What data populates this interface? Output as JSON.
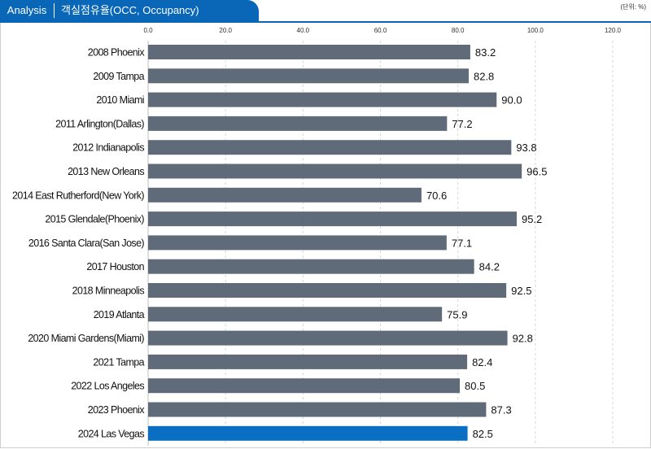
{
  "header": {
    "tag": "Analysis",
    "title": "객실점유율(OCC, Occupancy)",
    "unit": "(단위: %)"
  },
  "colors": {
    "accent": "#0a67b8",
    "bar": "#5f6b78",
    "highlight_bar": "#0a6fc2"
  },
  "chart_data": {
    "type": "bar",
    "orientation": "horizontal",
    "categories": [
      "2008 Phoenix",
      "2009 Tampa",
      "2010 Miami",
      "2011 Arlington(Dallas)",
      "2012 Indianapolis",
      "2013 New Orleans",
      "2014 East Rutherford(New York)",
      "2015 Glendale(Phoenix)",
      "2016 Santa Clara(San Jose)",
      "2017 Houston",
      "2018 Minneapolis",
      "2019 Atlanta",
      "2020 Miami Gardens(Miami)",
      "2021 Tampa",
      "2022 Los Angeles",
      "2023 Phoenix",
      "2024 Las Vegas"
    ],
    "values": [
      83.2,
      82.8,
      90.0,
      77.2,
      93.8,
      96.5,
      70.6,
      95.2,
      77.1,
      84.2,
      92.5,
      75.9,
      92.8,
      82.4,
      80.5,
      87.3,
      82.5
    ],
    "value_labels": [
      "83.2",
      "82.8",
      "90.0",
      "77.2",
      "93.8",
      "96.5",
      "70.6",
      "95.2",
      "77.1",
      "84.2",
      "92.5",
      "75.9",
      "92.8",
      "82.4",
      "80.5",
      "87.3",
      "82.5"
    ],
    "highlight_index": 16,
    "xlim": [
      0,
      120
    ],
    "xticks": [
      "0.0",
      "20.0",
      "40.0",
      "60.0",
      "80.0",
      "100.0",
      "120.0"
    ],
    "xtick_values": [
      0,
      20,
      40,
      60,
      80,
      100,
      120
    ],
    "grid": "vertical-dashed",
    "legend": "none",
    "title": "",
    "xlabel": "",
    "ylabel": ""
  }
}
